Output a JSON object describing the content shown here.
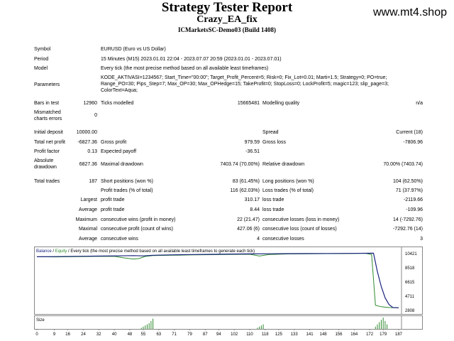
{
  "header": {
    "title": "Strategy Tester Report",
    "ea_name": "Crazy_EA_fix",
    "server": "ICMarketsSC-Demo03 (Build 1408)",
    "watermark": "www.mt4.shop"
  },
  "info": {
    "symbol_label": "Symbol",
    "symbol_value": "EURUSD (Euro vs US Dollar)",
    "period_label": "Period",
    "period_value": "15 Minutes (M15) 2023.01.01 22:04 - 2023.07.07 20:59 (2023.01.01 - 2023.07.01)",
    "model_label": "Model",
    "model_value": "Every tick (the most precise method based on all available least timeframes)",
    "params_label": "Parameters",
    "params_line1": "KODE_AKTIVASI=1234567; Start_Time=\"00:00\"; Target_Profit_Percent=5; Risk=0; Fix_Lot=0.01; Marti=1.5; Strategy=0; PO=true;",
    "params_line2": "Range_PO=30; Pips_Step=7; Max_OP=30; Max_OPHedge=15; TakeProfit=0; StopLoss=0; LockProfit=5; magic=123; slip_page=3;",
    "params_line3": "ColorText=Aqua;"
  },
  "stats1": {
    "bars_label": "Bars in test",
    "bars_value": "12960",
    "ticks_label": "Ticks modelled",
    "ticks_value": "15665481",
    "quality_label": "Modelling quality",
    "quality_value": "n/a",
    "mismatch_label1": "Mismatched",
    "mismatch_label2": "charts errors",
    "mismatch_value": "0"
  },
  "stats2": {
    "deposit_label": "Initial deposit",
    "deposit_value": "10000.00",
    "spread_label": "Spread",
    "spread_value": "Current (18)",
    "netprofit_label": "Total net profit",
    "netprofit_value": "-6827.36",
    "grossprofit_label": "Gross profit",
    "grossprofit_value": "979.59",
    "grossloss_label": "Gross loss",
    "grossloss_value": "-7806.96",
    "pf_label": "Profit factor",
    "pf_value": "0.13",
    "payoff_label": "Expected payoff",
    "payoff_value": "-36.51",
    "absdd_label1": "Absolute",
    "absdd_label2": "drawdown",
    "absdd_value": "6827.36",
    "maxdd_label": "Maximal drawdown",
    "maxdd_value": "7403.74 (70.00%)",
    "reldd_label": "Relative drawdown",
    "reldd_value": "70.00% (7403.74)"
  },
  "stats3": {
    "trades_label": "Total trades",
    "trades_value": "187",
    "short_label": "Short positions (won %)",
    "short_value": "83 (61.45%)",
    "long_label": "Long positions (won %)",
    "long_value": "104 (62.50%)",
    "profit_trades_label": "Profit trades (% of total)",
    "profit_trades_value": "116 (62.03%)",
    "loss_trades_label": "Loss trades (% of total)",
    "loss_trades_value": "71 (37.97%)",
    "largest_label": "Largest",
    "largest_profit_label": "profit trade",
    "largest_profit_value": "310.17",
    "largest_loss_label": "loss trade",
    "largest_loss_value": "-2119.66",
    "average_label": "Average",
    "average_profit_label": "profit trade",
    "average_profit_value": "8.44",
    "average_loss_label": "loss trade",
    "average_loss_value": "-109.96",
    "maximum_label": "Maximum",
    "max_wins_label": "consecutive wins (profit in money)",
    "max_wins_value": "22 (21.47)",
    "max_losses_label": "consecutive losses (loss in money)",
    "max_losses_value": "14 (-7292.76)",
    "maximal_label": "Maximal",
    "maximal_profit_label": "consecutive profit (count of wins)",
    "maximal_profit_value": "427.06 (6)",
    "maximal_loss_label": "consecutive loss (count of losses)",
    "maximal_loss_value": "-7292.76 (14)",
    "average2_label": "Average",
    "avg_wins_label": "consecutive wins",
    "avg_wins_value": "4",
    "avg_losses_label": "consecutive losses",
    "avg_losses_value": "3"
  },
  "chart_data": {
    "type": "line",
    "legend_balance": "Balance",
    "legend_sep": " / ",
    "legend_equity": "Equity",
    "legend_rest": " / Every tick (the most precise method based on all available least timeframes to generate each tick)",
    "size_label": "Size",
    "yticks": [
      10421,
      8518,
      6615,
      4711,
      2808
    ],
    "xticks": [
      0,
      9,
      16,
      24,
      32,
      40,
      48,
      55,
      63,
      71,
      79,
      87,
      94,
      102,
      110,
      118,
      125,
      133,
      141,
      148,
      156,
      164,
      172,
      179,
      187
    ],
    "ylim": [
      2808,
      10421
    ],
    "xlim": [
      0,
      187
    ],
    "balance_color": "#1a237e",
    "equity_color": "#2e8b2e",
    "balance": {
      "x": [
        0,
        10,
        20,
        30,
        40,
        50,
        55,
        60,
        70,
        80,
        90,
        100,
        110,
        120,
        130,
        140,
        150,
        160,
        170,
        174,
        176,
        178,
        180,
        182,
        184,
        187
      ],
      "y": [
        10000,
        10020,
        10060,
        10090,
        10120,
        10150,
        10120,
        10200,
        10260,
        10300,
        10330,
        10360,
        10380,
        10400,
        10420,
        10430,
        10440,
        10450,
        10470,
        10480,
        8000,
        6000,
        4500,
        3600,
        3200,
        3173
      ]
    },
    "equity": {
      "x": [
        0,
        10,
        20,
        30,
        40,
        45,
        50,
        53,
        56,
        60,
        70,
        80,
        90,
        100,
        110,
        115,
        120,
        130,
        140,
        150,
        160,
        170,
        173,
        174,
        175,
        178,
        182,
        187
      ],
      "y": [
        10000,
        9980,
        10020,
        10050,
        10060,
        9850,
        9700,
        9780,
        10050,
        10150,
        10200,
        10250,
        10280,
        10320,
        10340,
        10100,
        10300,
        10380,
        10400,
        10420,
        10430,
        10460,
        10300,
        7000,
        3500,
        3300,
        3200,
        3173
      ]
    },
    "size_bars": {
      "x": [
        54,
        55,
        56,
        57,
        58,
        59,
        60,
        114,
        115,
        116,
        117,
        175,
        176,
        177,
        178,
        179,
        180,
        181
      ],
      "h": [
        1,
        2,
        3,
        4,
        5,
        7,
        9,
        1,
        2,
        3,
        4,
        2,
        4,
        6,
        8,
        10,
        7,
        4
      ]
    }
  }
}
